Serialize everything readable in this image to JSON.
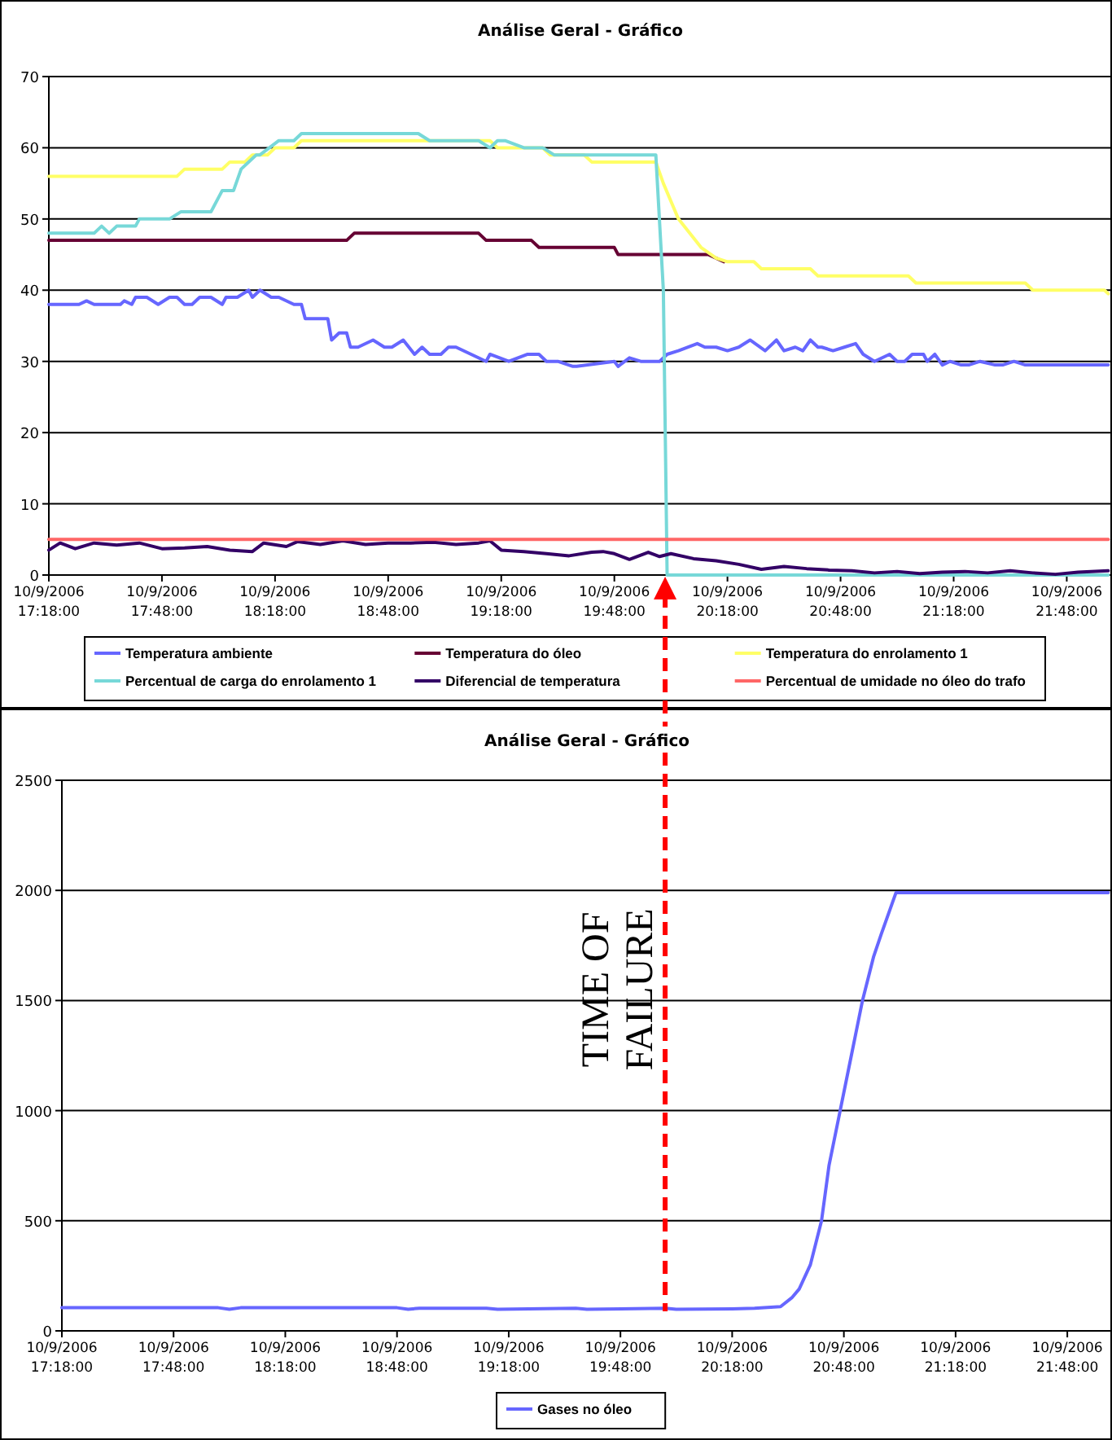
{
  "chart_data": [
    {
      "type": "line",
      "title": "Análise Geral - Gráfico",
      "xlim": [
        "2006-09-10T17:18",
        "2006-09-10T22:00"
      ],
      "ylim": [
        0,
        70
      ],
      "yticks": [
        0,
        10,
        20,
        30,
        40,
        50,
        60,
        70
      ],
      "xticks": [
        {
          "value": "2006-09-10T17:18",
          "label": "10/9/2006 17:18:00"
        },
        {
          "value": "2006-09-10T17:48",
          "label": "10/9/2006 17:48:00"
        },
        {
          "value": "2006-09-10T18:18",
          "label": "10/9/2006 18:18:00"
        },
        {
          "value": "2006-09-10T18:48",
          "label": "10/9/2006 18:48:00"
        },
        {
          "value": "2006-09-10T19:18",
          "label": "10/9/2006 19:18:00"
        },
        {
          "value": "2006-09-10T19:48",
          "label": "10/9/2006 19:48:00"
        },
        {
          "value": "2006-09-10T20:18",
          "label": "10/9/2006 20:18:00"
        },
        {
          "value": "2006-09-10T20:48",
          "label": "10/9/2006 20:48:00"
        },
        {
          "value": "2006-09-10T21:18",
          "label": "10/9/2006 21:18:00"
        },
        {
          "value": "2006-09-10T21:48",
          "label": "10/9/2006 21:48:00"
        }
      ],
      "grid": "y",
      "legend": "bottom",
      "line_style": "solid",
      "series": [
        {
          "name": "Temperatura ambiente",
          "color": "#6666ff",
          "x": [
            "2006-09-10T17:18",
            "2006-09-10T17:26",
            "2006-09-10T17:28",
            "2006-09-10T17:30",
            "2006-09-10T17:37",
            "2006-09-10T17:38",
            "2006-09-10T17:40",
            "2006-09-10T17:41",
            "2006-09-10T17:44",
            "2006-09-10T17:47",
            "2006-09-10T17:50",
            "2006-09-10T17:52",
            "2006-09-10T17:54",
            "2006-09-10T17:56",
            "2006-09-10T17:58",
            "2006-09-10T18:01",
            "2006-09-10T18:04",
            "2006-09-10T18:05",
            "2006-09-10T18:08",
            "2006-09-10T18:11",
            "2006-09-10T18:12",
            "2006-09-10T18:14",
            "2006-09-10T18:17",
            "2006-09-10T18:19",
            "2006-09-10T18:23",
            "2006-09-10T18:25",
            "2006-09-10T18:26",
            "2006-09-10T18:32",
            "2006-09-10T18:33",
            "2006-09-10T18:35",
            "2006-09-10T18:37",
            "2006-09-10T18:38",
            "2006-09-10T18:40",
            "2006-09-10T18:44",
            "2006-09-10T18:47",
            "2006-09-10T18:49",
            "2006-09-10T18:52",
            "2006-09-10T18:55",
            "2006-09-10T18:57",
            "2006-09-10T18:59",
            "2006-09-10T19:02",
            "2006-09-10T19:04",
            "2006-09-10T19:06",
            "2006-09-10T19:14",
            "2006-09-10T19:15",
            "2006-09-10T19:20",
            "2006-09-10T19:25",
            "2006-09-10T19:28",
            "2006-09-10T19:30",
            "2006-09-10T19:33",
            "2006-09-10T19:37",
            "2006-09-10T19:38",
            "2006-09-10T19:48",
            "2006-09-10T19:49",
            "2006-09-10T19:52",
            "2006-09-10T19:55",
            "2006-09-10T20:00",
            "2006-09-10T20:02",
            "2006-09-10T20:05",
            "2006-09-10T20:10",
            "2006-09-10T20:12",
            "2006-09-10T20:15",
            "2006-09-10T20:18",
            "2006-09-10T20:21",
            "2006-09-10T20:24",
            "2006-09-10T20:28",
            "2006-09-10T20:31",
            "2006-09-10T20:33",
            "2006-09-10T20:36",
            "2006-09-10T20:38",
            "2006-09-10T20:40",
            "2006-09-10T20:42",
            "2006-09-10T20:43",
            "2006-09-10T20:46",
            "2006-09-10T20:49",
            "2006-09-10T20:52",
            "2006-09-10T20:54",
            "2006-09-10T20:57",
            "2006-09-10T21:01",
            "2006-09-10T21:03",
            "2006-09-10T21:05",
            "2006-09-10T21:07",
            "2006-09-10T21:10",
            "2006-09-10T21:11",
            "2006-09-10T21:13",
            "2006-09-10T21:15",
            "2006-09-10T21:17",
            "2006-09-10T21:20",
            "2006-09-10T21:22",
            "2006-09-10T21:25",
            "2006-09-10T21:29",
            "2006-09-10T21:31",
            "2006-09-10T21:34",
            "2006-09-10T21:37",
            "2006-09-10T21:40",
            "2006-09-10T21:43",
            "2006-09-10T21:46",
            "2006-09-10T21:50",
            "2006-09-10T21:52",
            "2006-09-10T21:54",
            "2006-09-10T21:59"
          ],
          "values": [
            38,
            38,
            38.5,
            38,
            38,
            38.5,
            38,
            39,
            39,
            38,
            39,
            39,
            38,
            38,
            39,
            39,
            38,
            39,
            39,
            40,
            39,
            40,
            39,
            39,
            38,
            38,
            36,
            36,
            33,
            34,
            34,
            32,
            32,
            33,
            32,
            32,
            33,
            31,
            32,
            31,
            31,
            32,
            32,
            30,
            31,
            30,
            31,
            31,
            30,
            30,
            29.3,
            29.3,
            30,
            29.3,
            30.5,
            30,
            30,
            31,
            31.5,
            32.5,
            32,
            32,
            31.5,
            32,
            33,
            31.5,
            33,
            31.5,
            32,
            31.5,
            33,
            32,
            32,
            31.5,
            32,
            32.5,
            31,
            30,
            31,
            30,
            30,
            31,
            31,
            30,
            31,
            29.5,
            30,
            29.5,
            29.5,
            30,
            29.5,
            29.5,
            30,
            29.5,
            29.5,
            29.5,
            29.5,
            29.5,
            29.5,
            29.5,
            29.5
          ]
        },
        {
          "name": "Temperatura do óleo",
          "color": "#660033",
          "x": [
            "2006-09-10T17:18",
            "2006-09-10T18:37",
            "2006-09-10T18:39",
            "2006-09-10T19:12",
            "2006-09-10T19:14",
            "2006-09-10T19:26",
            "2006-09-10T19:28",
            "2006-09-10T19:48",
            "2006-09-10T19:49",
            "2006-09-10T20:13",
            "2006-09-10T20:17"
          ],
          "values": [
            47,
            47,
            48,
            48,
            47,
            47,
            46,
            46,
            45,
            45,
            44
          ]
        },
        {
          "name": "Temperatura do enrolamento 1",
          "color": "#ffff66",
          "x": [
            "2006-09-10T17:18",
            "2006-09-10T17:52",
            "2006-09-10T17:54",
            "2006-09-10T18:04",
            "2006-09-10T18:06",
            "2006-09-10T18:10",
            "2006-09-10T18:12",
            "2006-09-10T18:16",
            "2006-09-10T18:18",
            "2006-09-10T18:23",
            "2006-09-10T18:25",
            "2006-09-10T19:15",
            "2006-09-10T19:17",
            "2006-09-10T19:29",
            "2006-09-10T19:31",
            "2006-09-10T19:40",
            "2006-09-10T19:42",
            "2006-09-10T19:59",
            "2006-09-10T20:01",
            "2006-09-10T20:05",
            "2006-09-10T20:11",
            "2006-09-10T20:15",
            "2006-09-10T20:18",
            "2006-09-10T20:25",
            "2006-09-10T20:27",
            "2006-09-10T20:40",
            "2006-09-10T20:42",
            "2006-09-10T21:06",
            "2006-09-10T21:08",
            "2006-09-10T21:37",
            "2006-09-10T21:39",
            "2006-09-10T21:58",
            "2006-09-10T21:59"
          ],
          "values": [
            56,
            56,
            57,
            57,
            58,
            58,
            59,
            59,
            60,
            60,
            61,
            61,
            60,
            60,
            59,
            59,
            58,
            58,
            55,
            50,
            46,
            44.5,
            44,
            44,
            43,
            43,
            42,
            42,
            41,
            41,
            40,
            40,
            39.5
          ]
        },
        {
          "name": "Percentual de carga do enrolamento 1",
          "color": "#77d8d8",
          "x": [
            "2006-09-10T17:18",
            "2006-09-10T17:30",
            "2006-09-10T17:32",
            "2006-09-10T17:34",
            "2006-09-10T17:36",
            "2006-09-10T17:41",
            "2006-09-10T17:42",
            "2006-09-10T17:50",
            "2006-09-10T17:53",
            "2006-09-10T18:01",
            "2006-09-10T18:03",
            "2006-09-10T18:04",
            "2006-09-10T18:07",
            "2006-09-10T18:09",
            "2006-09-10T18:13",
            "2006-09-10T18:14",
            "2006-09-10T18:19",
            "2006-09-10T18:23",
            "2006-09-10T18:25",
            "2006-09-10T18:56",
            "2006-09-10T18:59",
            "2006-09-10T19:12",
            "2006-09-10T19:15",
            "2006-09-10T19:17",
            "2006-09-10T19:19",
            "2006-09-10T19:24",
            "2006-09-10T19:29",
            "2006-09-10T19:32",
            "2006-09-10T19:59",
            "2006-09-10T20:01",
            "2006-09-10T20:02",
            "2006-09-10T21:59"
          ],
          "values": [
            48,
            48,
            49,
            48,
            49,
            49,
            50,
            50,
            51,
            51,
            53,
            54,
            54,
            57,
            59,
            59,
            61,
            61,
            62,
            62,
            61,
            61,
            60,
            61,
            61,
            60,
            60,
            59,
            59,
            40,
            0,
            0
          ]
        },
        {
          "name": "Diferencial de temperatura",
          "color": "#330066",
          "x": [
            "2006-09-10T17:18",
            "2006-09-10T17:21",
            "2006-09-10T17:25",
            "2006-09-10T17:30",
            "2006-09-10T17:36",
            "2006-09-10T17:42",
            "2006-09-10T17:48",
            "2006-09-10T17:54",
            "2006-09-10T18:00",
            "2006-09-10T18:06",
            "2006-09-10T18:12",
            "2006-09-10T18:15",
            "2006-09-10T18:21",
            "2006-09-10T18:24",
            "2006-09-10T18:30",
            "2006-09-10T18:36",
            "2006-09-10T18:42",
            "2006-09-10T18:48",
            "2006-09-10T18:54",
            "2006-09-10T19:00",
            "2006-09-10T19:06",
            "2006-09-10T19:12",
            "2006-09-10T19:15",
            "2006-09-10T19:18",
            "2006-09-10T19:24",
            "2006-09-10T19:30",
            "2006-09-10T19:36",
            "2006-09-10T19:42",
            "2006-09-10T19:45",
            "2006-09-10T19:48",
            "2006-09-10T19:52",
            "2006-09-10T19:57",
            "2006-09-10T20:00",
            "2006-09-10T20:03",
            "2006-09-10T20:09",
            "2006-09-10T20:15",
            "2006-09-10T20:21",
            "2006-09-10T20:27",
            "2006-09-10T20:33",
            "2006-09-10T20:39",
            "2006-09-10T20:45",
            "2006-09-10T20:51",
            "2006-09-10T20:57",
            "2006-09-10T21:03",
            "2006-09-10T21:09",
            "2006-09-10T21:15",
            "2006-09-10T21:21",
            "2006-09-10T21:27",
            "2006-09-10T21:33",
            "2006-09-10T21:39",
            "2006-09-10T21:45",
            "2006-09-10T21:51",
            "2006-09-10T21:59"
          ],
          "values": [
            3.5,
            4.5,
            3.7,
            4.5,
            4.2,
            4.5,
            3.7,
            3.8,
            4,
            3.5,
            3.3,
            4.5,
            4,
            4.7,
            4.3,
            4.8,
            4.3,
            4.5,
            4.5,
            4.6,
            4.3,
            4.5,
            4.8,
            3.5,
            3.3,
            3,
            2.7,
            3.2,
            3.3,
            3,
            2.2,
            3.2,
            2.6,
            3,
            2.3,
            2,
            1.5,
            0.8,
            1.2,
            0.9,
            0.7,
            0.6,
            0.3,
            0.5,
            0.2,
            0.4,
            0.5,
            0.3,
            0.6,
            0.3,
            0.1,
            0.4,
            0.6
          ]
        },
        {
          "name": "Percentual de umidade no óleo do trafo",
          "color": "#ff6666",
          "x": [
            "2006-09-10T17:18",
            "2006-09-10T21:59"
          ],
          "values": [
            5,
            5
          ]
        }
      ]
    },
    {
      "type": "line",
      "title": "Análise Geral - Gráfico",
      "xlim": [
        "2006-09-10T17:18",
        "2006-09-10T22:00"
      ],
      "ylim": [
        0,
        2500
      ],
      "yticks": [
        0,
        500,
        1000,
        1500,
        2000,
        2500
      ],
      "xticks": [
        {
          "value": "2006-09-10T17:18",
          "label": "10/9/2006 17:18:00"
        },
        {
          "value": "2006-09-10T17:48",
          "label": "10/9/2006 17:48:00"
        },
        {
          "value": "2006-09-10T18:18",
          "label": "10/9/2006 18:18:00"
        },
        {
          "value": "2006-09-10T18:48",
          "label": "10/9/2006 18:48:00"
        },
        {
          "value": "2006-09-10T19:18",
          "label": "10/9/2006 19:18:00"
        },
        {
          "value": "2006-09-10T19:48",
          "label": "10/9/2006 19:48:00"
        },
        {
          "value": "2006-09-10T20:18",
          "label": "10/9/2006 20:18:00"
        },
        {
          "value": "2006-09-10T20:48",
          "label": "10/9/2006 20:48:00"
        },
        {
          "value": "2006-09-10T21:18",
          "label": "10/9/2006 21:18:00"
        },
        {
          "value": "2006-09-10T21:48",
          "label": "10/9/2006 21:48:00"
        }
      ],
      "grid": "y",
      "legend": "bottom",
      "line_style": "solid",
      "ref_lines": [
        {
          "axis": "x",
          "value": "2006-09-10T20:00",
          "label": "TIME OF FAILURE",
          "color": "#ff0000",
          "line_style": "dashed"
        }
      ],
      "series": [
        {
          "name": "Gases no óleo",
          "color": "#6666ff",
          "x": [
            "2006-09-10T17:18",
            "2006-09-10T18:00",
            "2006-09-10T18:03",
            "2006-09-10T18:06",
            "2006-09-10T18:48",
            "2006-09-10T18:51",
            "2006-09-10T18:54",
            "2006-09-10T19:12",
            "2006-09-10T19:15",
            "2006-09-10T19:36",
            "2006-09-10T19:39",
            "2006-09-10T20:00",
            "2006-09-10T20:03",
            "2006-09-10T20:18",
            "2006-09-10T20:24",
            "2006-09-10T20:31",
            "2006-09-10T20:34",
            "2006-09-10T20:36",
            "2006-09-10T20:39",
            "2006-09-10T20:42",
            "2006-09-10T20:44",
            "2006-09-10T20:47",
            "2006-09-10T20:50",
            "2006-09-10T20:53",
            "2006-09-10T20:56",
            "2006-09-10T20:58",
            "2006-09-10T21:02",
            "2006-09-10T21:59"
          ],
          "values": [
            105,
            105,
            98,
            105,
            105,
            98,
            103,
            103,
            98,
            103,
            98,
            103,
            98,
            100,
            103,
            110,
            150,
            190,
            300,
            500,
            750,
            1000,
            1250,
            1500,
            1700,
            1800,
            1990,
            1990
          ]
        }
      ]
    }
  ]
}
